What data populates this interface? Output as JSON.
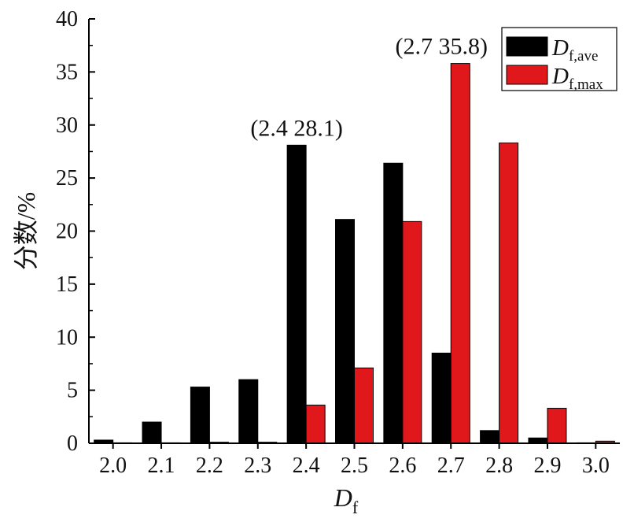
{
  "chart_data": {
    "type": "bar",
    "categories": [
      "2.0",
      "2.1",
      "2.2",
      "2.3",
      "2.4",
      "2.5",
      "2.6",
      "2.7",
      "2.8",
      "2.9",
      "3.0"
    ],
    "series": [
      {
        "key": "Df_ave",
        "legend_label": {
          "main": "D",
          "sub": "f,ave"
        },
        "color": "#000000",
        "values": [
          0.3,
          2.0,
          5.3,
          6.0,
          28.1,
          21.1,
          26.4,
          8.5,
          1.2,
          0.5,
          0.0
        ]
      },
      {
        "key": "Df_max",
        "legend_label": {
          "main": "D",
          "sub": "f,max"
        },
        "color": "#e0171b",
        "values": [
          0.0,
          0.0,
          0.1,
          0.1,
          3.6,
          7.1,
          20.9,
          35.8,
          28.3,
          3.3,
          0.2
        ]
      }
    ],
    "ylim": [
      0,
      40
    ],
    "yticks": [
      "0",
      "5",
      "10",
      "15",
      "20",
      "25",
      "30",
      "35",
      "40"
    ],
    "ylabel": "分数/%",
    "xlabel": {
      "main": "D",
      "sub": "f"
    },
    "annotations": [
      {
        "text": "(2.4 28.1)",
        "category": "2.4",
        "value": 28.1
      },
      {
        "text": "(2.7 35.8)",
        "category": "2.7",
        "value": 35.8
      }
    ],
    "legend_position": "top-right",
    "grid": false
  }
}
